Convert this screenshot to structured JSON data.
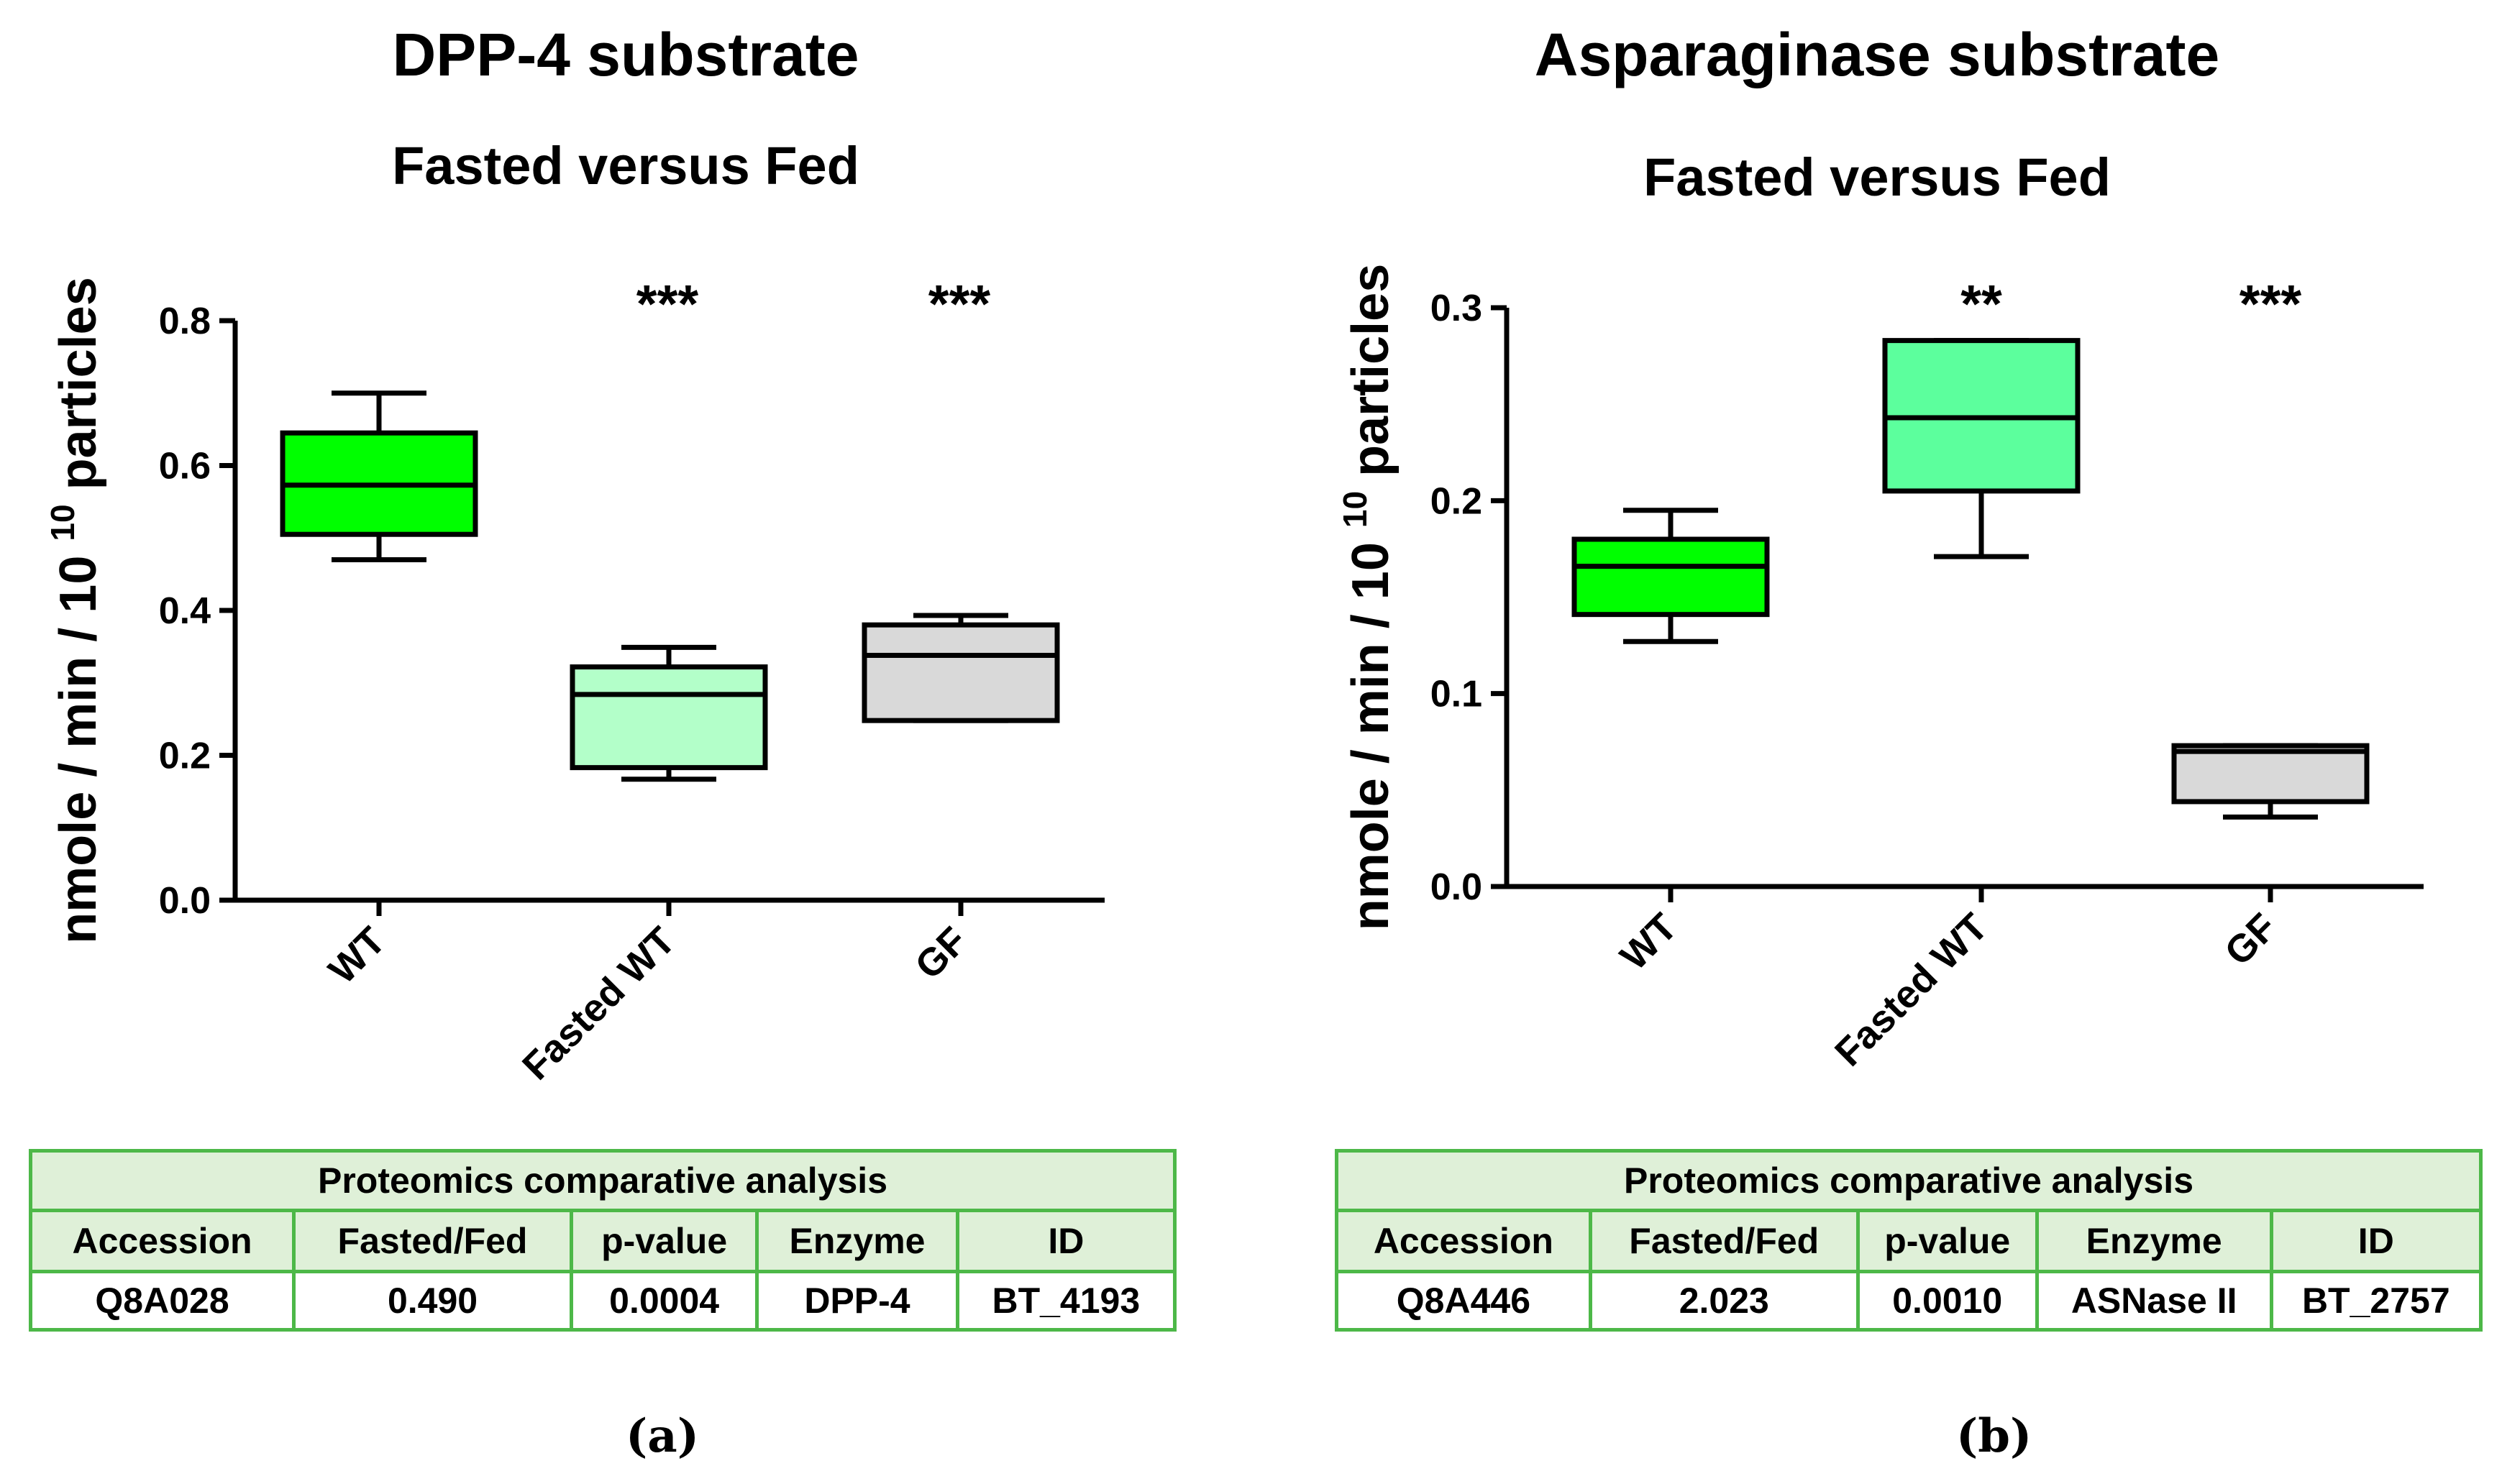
{
  "panels": [
    {
      "title": "DPP-4 substrate",
      "caption": "(a)",
      "chart_data": {
        "type": "box",
        "title": "Fasted versus Fed",
        "ylabel_main": "nmole / min / 10",
        "ylabel_sup": "10",
        "ylabel_tail": "particles",
        "ylim": [
          0,
          0.8
        ],
        "yticks": [
          "0.0",
          "0.2",
          "0.4",
          "0.6",
          "0.8"
        ],
        "categories": [
          "WT",
          "Fasted WT",
          "GF"
        ],
        "boxes": [
          {
            "min": 0.47,
            "q1": 0.505,
            "median": 0.573,
            "q3": 0.645,
            "max": 0.7,
            "fill": "#00ff00",
            "sig": ""
          },
          {
            "min": 0.167,
            "q1": 0.183,
            "median": 0.284,
            "q3": 0.322,
            "max": 0.349,
            "fill": "#b3ffc9",
            "sig": "***"
          },
          {
            "min": 0.248,
            "q1": 0.248,
            "median": 0.338,
            "q3": 0.38,
            "max": 0.393,
            "fill": "#d9d9d9",
            "sig": "***"
          }
        ]
      },
      "table": {
        "header": "Proteomics comparative analysis",
        "columns": [
          "Accession",
          "Fasted/Fed",
          "p-value",
          "Enzyme",
          "ID"
        ],
        "values": [
          "Q8A028",
          "0.490",
          "0.0004",
          "DPP-4",
          "BT_4193"
        ]
      }
    },
    {
      "title": "Asparaginase substrate",
      "caption": "(b)",
      "chart_data": {
        "type": "box",
        "title": "Fasted versus Fed",
        "ylabel_main": "nmole / min / 10",
        "ylabel_sup": "10",
        "ylabel_tail": "particles",
        "ylim": [
          0,
          0.3
        ],
        "yticks": [
          "0.0",
          "0.1",
          "0.2",
          "0.3"
        ],
        "categories": [
          "WT",
          "Fasted WT",
          "GF"
        ],
        "boxes": [
          {
            "min": 0.127,
            "q1": 0.141,
            "median": 0.166,
            "q3": 0.18,
            "max": 0.195,
            "fill": "#00ff00",
            "sig": ""
          },
          {
            "min": 0.171,
            "q1": 0.205,
            "median": 0.243,
            "q3": 0.283,
            "max": 0.283,
            "fill": "#5cff9d",
            "sig": "**"
          },
          {
            "min": 0.036,
            "q1": 0.044,
            "median": 0.07,
            "q3": 0.073,
            "max": 0.073,
            "fill": "#d9d9d9",
            "sig": "***"
          }
        ]
      },
      "table": {
        "header": "Proteomics comparative analysis",
        "columns": [
          "Accession",
          "Fasted/Fed",
          "p-value",
          "Enzyme",
          "ID"
        ],
        "values": [
          "Q8A446",
          "2.023",
          "0.0010",
          "ASNase II",
          "BT_2757"
        ]
      }
    }
  ]
}
